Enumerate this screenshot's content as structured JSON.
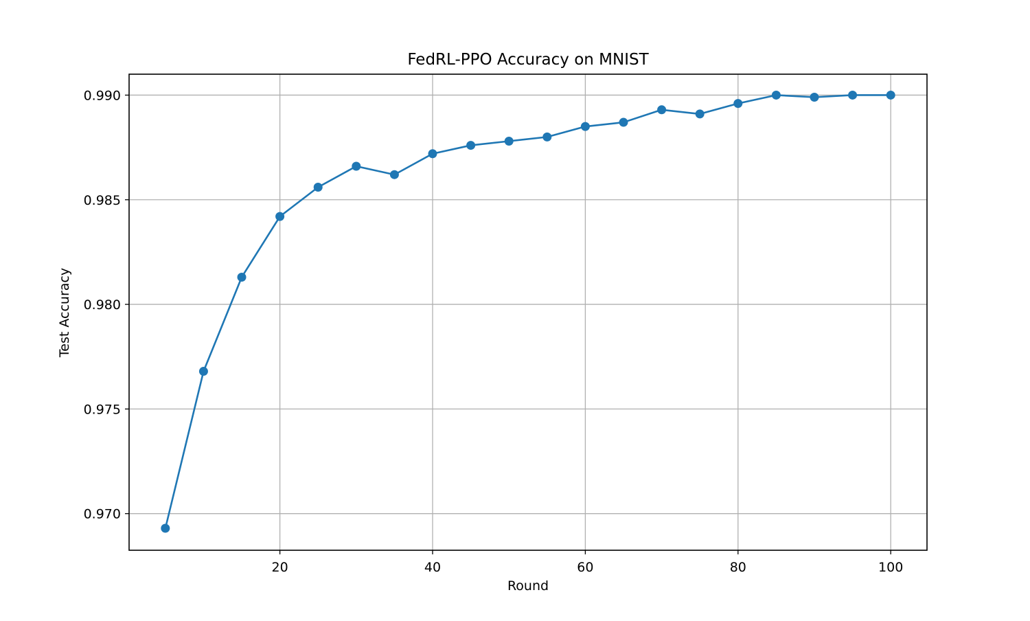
{
  "chart_data": {
    "type": "line",
    "title": "FedRL-PPO Accuracy on MNIST",
    "xlabel": "Round",
    "ylabel": "Test Accuracy",
    "xlim": [
      0.25,
      104.75
    ],
    "ylim": [
      0.96825,
      0.991
    ],
    "xticks": [
      20,
      40,
      60,
      80,
      100
    ],
    "xtick_labels": [
      "20",
      "40",
      "60",
      "80",
      "100"
    ],
    "yticks": [
      0.97,
      0.975,
      0.98,
      0.985,
      0.99
    ],
    "ytick_labels": [
      "0.970",
      "0.975",
      "0.980",
      "0.985",
      "0.990"
    ],
    "grid": true,
    "legend": "none",
    "series": [
      {
        "color": "#1f77b4",
        "marker": "circle",
        "x": [
          5,
          10,
          15,
          20,
          25,
          30,
          35,
          40,
          45,
          50,
          55,
          60,
          65,
          70,
          75,
          80,
          85,
          90,
          95,
          100
        ],
        "y": [
          0.9693,
          0.9768,
          0.9813,
          0.9842,
          0.9856,
          0.9866,
          0.9862,
          0.9872,
          0.9876,
          0.9878,
          0.988,
          0.9885,
          0.9887,
          0.9893,
          0.9891,
          0.9896,
          0.99,
          0.9899,
          0.99,
          0.99
        ]
      }
    ]
  }
}
